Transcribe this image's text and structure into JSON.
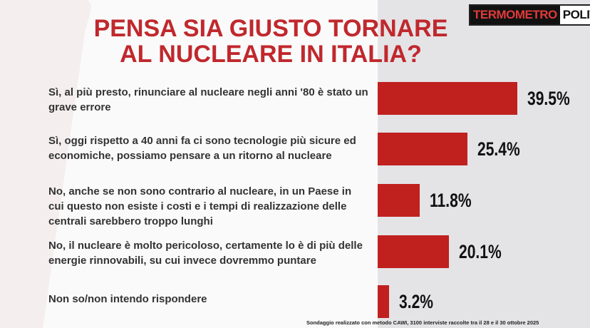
{
  "chart_data": {
    "type": "bar",
    "orientation": "horizontal",
    "title": "PENSA SIA GIUSTO TORNARE AL NUCLEARE IN ITALIA?",
    "logo": [
      "TERMOMETRO",
      "POLITICO"
    ],
    "categories": [
      "Sì, al più presto, rinunciare al nucleare negli anni '80 è stato un grave errore",
      "Sì, oggi rispetto a 40 anni fa ci sono tecnologie più sicure ed economiche, possiamo pensare a un ritorno al nucleare",
      "No, anche se non sono contrario al nucleare, in un Paese in cui questo non esiste i costi e i tempi di realizzazione delle centrali sarebbero troppo lunghi",
      "No, il nucleare è molto pericoloso, certamente lo è di più delle energie rinnovabili, su cui invece dovremmo puntare",
      "Non so/non intendo rispondere"
    ],
    "values": [
      39.5,
      25.4,
      11.8,
      20.1,
      3.2
    ],
    "value_labels": [
      "39.5%",
      "25.4%",
      "11.8%",
      "20.1%",
      "3.2%"
    ],
    "color": "#c0201e",
    "note": "Sondaggio realizzato con metodo CAWI, 3100 interviste raccolte tra il 28 e il 30 ottobre 2025"
  }
}
